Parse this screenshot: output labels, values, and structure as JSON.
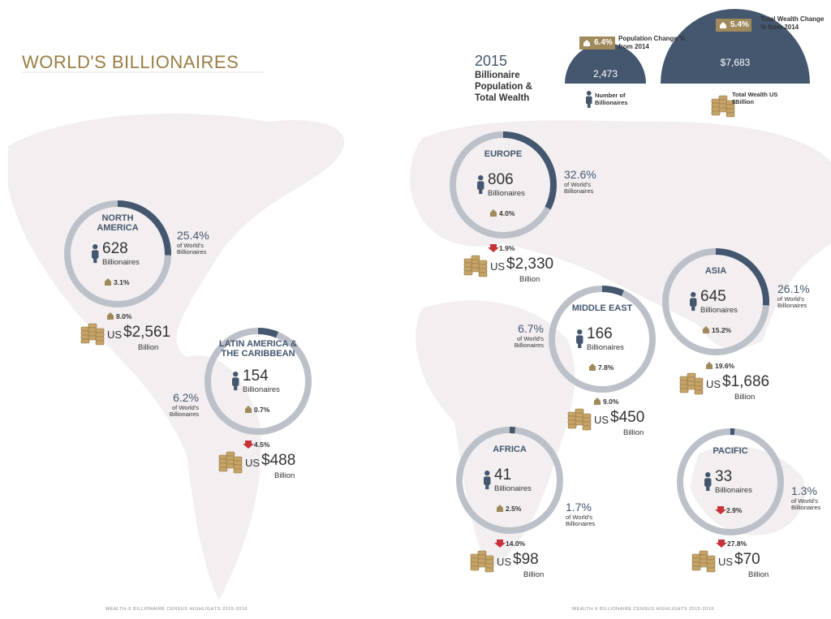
{
  "header": {
    "title": "WORLD'S BILLIONAIRES"
  },
  "summary": {
    "year": "2015",
    "caption": "Billionaire Population & Total Wealth",
    "population": {
      "change": "6.4%",
      "change_label": "Population Change % from 2014",
      "value": "2,473",
      "label": "Number of Billionaires"
    },
    "wealth": {
      "change": "5.4%",
      "change_label": "Total Wealth Change % from 2014",
      "value": "$7,683",
      "label": "Total Wealth US $Billion"
    }
  },
  "regions": [
    {
      "name": "NORTH AMERICA",
      "count": "628",
      "count_label": "Billionaires",
      "count_change": "3.1%",
      "count_trend": "up",
      "share": {
        "value": 25.4,
        "label": "25.4%"
      },
      "share_caption": "of World's Billionaires",
      "wealth_change": "8.0%",
      "wealth_trend": "up",
      "currency": "US",
      "wealth": "$2,561",
      "wealth_unit": "Billion"
    },
    {
      "name": "LATIN AMERICA & THE CARIBBEAN",
      "count": "154",
      "count_label": "Billionaires",
      "count_change": "0.7%",
      "count_trend": "up",
      "share": {
        "value": 6.2,
        "label": "6.2%"
      },
      "share_caption": "of World's Billionaires",
      "wealth_change": "4.5%",
      "wealth_trend": "down",
      "currency": "US",
      "wealth": "$488",
      "wealth_unit": "Billion"
    },
    {
      "name": "EUROPE",
      "count": "806",
      "count_label": "Billionaires",
      "count_change": "4.0%",
      "count_trend": "up",
      "share": {
        "value": 32.6,
        "label": "32.6%"
      },
      "share_caption": "of World's Billionaires",
      "wealth_change": "1.9%",
      "wealth_trend": "down",
      "currency": "US",
      "wealth": "$2,330",
      "wealth_unit": "Billion"
    },
    {
      "name": "MIDDLE EAST",
      "count": "166",
      "count_label": "Billionaires",
      "count_change": "7.8%",
      "count_trend": "up",
      "share": {
        "value": 6.7,
        "label": "6.7%"
      },
      "share_caption": "of World's Billionaires",
      "wealth_change": "9.0%",
      "wealth_trend": "up",
      "currency": "US",
      "wealth": "$450",
      "wealth_unit": "Billion"
    },
    {
      "name": "ASIA",
      "count": "645",
      "count_label": "Billionaires",
      "count_change": "15.2%",
      "count_trend": "up",
      "share": {
        "value": 26.1,
        "label": "26.1%"
      },
      "share_caption": "of World's Billionaires",
      "wealth_change": "19.6%",
      "wealth_trend": "up",
      "currency": "US",
      "wealth": "$1,686",
      "wealth_unit": "Billion"
    },
    {
      "name": "AFRICA",
      "count": "41",
      "count_label": "Billionaires",
      "count_change": "2.5%",
      "count_trend": "up",
      "share": {
        "value": 1.7,
        "label": "1.7%"
      },
      "share_caption": "of World's Billionaires",
      "wealth_change": "14.0%",
      "wealth_trend": "down",
      "currency": "US",
      "wealth": "$98",
      "wealth_unit": "Billion"
    },
    {
      "name": "PACIFIC",
      "count": "33",
      "count_label": "Billionaires",
      "count_change": "2.9%",
      "count_trend": "down",
      "share": {
        "value": 1.3,
        "label": "1.3%"
      },
      "share_caption": "of World's Billionaires",
      "wealth_change": "27.8%",
      "wealth_trend": "down",
      "currency": "US",
      "wealth": "$70",
      "wealth_unit": "Billion"
    }
  ],
  "footer": {
    "left": "WEALTH-X BILLIONAIRE CENSUS HIGHLIGHTS 2015-2016",
    "right": "WEALTH-X BILLIONAIRE CENSUS HIGHLIGHTS 2015-2016"
  }
}
